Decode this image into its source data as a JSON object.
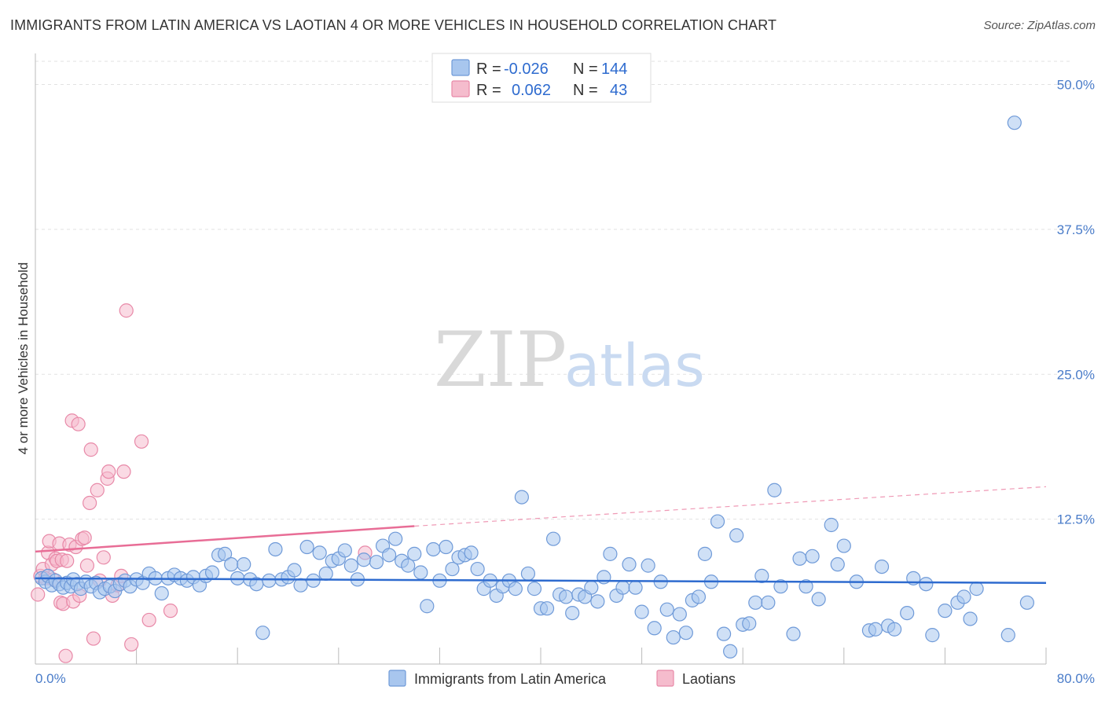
{
  "title": "IMMIGRANTS FROM LATIN AMERICA VS LAOTIAN 4 OR MORE VEHICLES IN HOUSEHOLD CORRELATION CHART",
  "source": "Source: ZipAtlas.com",
  "watermark": {
    "zip": "ZIP",
    "atlas": "atlas"
  },
  "colors": {
    "blue_fill": "#a8c6ee",
    "blue_stroke": "#6f9ad8",
    "blue_line": "#2e6bcf",
    "pink_fill": "#f5bccd",
    "pink_stroke": "#e889a8",
    "pink_line": "#e86d96",
    "tick_color": "#4a7cc9"
  },
  "legend": {
    "rows": [
      {
        "r_label": "R =",
        "r_value": "-0.026",
        "n_label": "N =",
        "n_value": "144"
      },
      {
        "r_label": "R =",
        "r_value": "0.062",
        "n_label": "N =",
        "n_value": "43"
      }
    ]
  },
  "bottom_legend": [
    "Immigrants from Latin America",
    "Laotians"
  ],
  "chart_data": {
    "type": "scatter",
    "title": "IMMIGRANTS FROM LATIN AMERICA VS LAOTIAN 4 OR MORE VEHICLES IN HOUSEHOLD CORRELATION CHART",
    "xlabel": "",
    "ylabel": "4 or more Vehicles in Household",
    "xlim": [
      0,
      80
    ],
    "ylim": [
      0,
      52
    ],
    "x_tick_labels": [
      "0.0%",
      "80.0%"
    ],
    "y_tick_labels": [
      "12.5%",
      "25.0%",
      "37.5%",
      "50.0%"
    ],
    "y_ticks": [
      12.5,
      25.0,
      37.5,
      50.0
    ],
    "grid": true,
    "legend_placement": "top-center",
    "series": [
      {
        "name": "Immigrants from Latin America",
        "r": -0.026,
        "n": 144,
        "trend": {
          "x0": 0,
          "y0": 7.4,
          "x1": 80,
          "y1": 7.0
        },
        "points": [
          [
            0.5,
            7.4
          ],
          [
            0.8,
            7.1
          ],
          [
            1.0,
            7.6
          ],
          [
            1.3,
            6.8
          ],
          [
            1.6,
            7.2
          ],
          [
            1.9,
            6.9
          ],
          [
            2.2,
            6.6
          ],
          [
            2.5,
            7.0
          ],
          [
            2.8,
            6.7
          ],
          [
            3.0,
            7.3
          ],
          [
            3.3,
            6.9
          ],
          [
            3.6,
            6.5
          ],
          [
            4.0,
            7.1
          ],
          [
            4.4,
            6.7
          ],
          [
            4.8,
            7.0
          ],
          [
            5.1,
            6.2
          ],
          [
            5.5,
            6.5
          ],
          [
            5.9,
            6.7
          ],
          [
            6.3,
            6.3
          ],
          [
            6.7,
            6.9
          ],
          [
            7.1,
            7.2
          ],
          [
            7.5,
            6.7
          ],
          [
            8.0,
            7.3
          ],
          [
            8.5,
            7.0
          ],
          [
            9.0,
            7.8
          ],
          [
            9.5,
            7.4
          ],
          [
            10.0,
            6.1
          ],
          [
            10.5,
            7.4
          ],
          [
            11.0,
            7.7
          ],
          [
            11.5,
            7.4
          ],
          [
            12.0,
            7.2
          ],
          [
            12.5,
            7.5
          ],
          [
            13.0,
            6.8
          ],
          [
            13.5,
            7.6
          ],
          [
            14.0,
            7.9
          ],
          [
            14.5,
            9.4
          ],
          [
            15.0,
            9.5
          ],
          [
            15.5,
            8.6
          ],
          [
            16.0,
            7.4
          ],
          [
            16.5,
            8.6
          ],
          [
            17.0,
            7.3
          ],
          [
            17.5,
            6.9
          ],
          [
            18.0,
            2.7
          ],
          [
            18.5,
            7.2
          ],
          [
            19.0,
            9.9
          ],
          [
            19.5,
            7.3
          ],
          [
            20.0,
            7.5
          ],
          [
            20.5,
            8.1
          ],
          [
            21.0,
            6.8
          ],
          [
            21.5,
            10.1
          ],
          [
            22.0,
            7.2
          ],
          [
            22.5,
            9.6
          ],
          [
            23.0,
            7.8
          ],
          [
            23.5,
            8.9
          ],
          [
            24.0,
            9.1
          ],
          [
            24.5,
            9.8
          ],
          [
            25.0,
            8.5
          ],
          [
            25.5,
            7.3
          ],
          [
            26.0,
            9.0
          ],
          [
            27.0,
            8.8
          ],
          [
            27.5,
            10.2
          ],
          [
            28.0,
            9.4
          ],
          [
            28.5,
            10.8
          ],
          [
            29.0,
            8.9
          ],
          [
            29.5,
            8.5
          ],
          [
            30.0,
            9.5
          ],
          [
            30.5,
            7.9
          ],
          [
            31.0,
            5.0
          ],
          [
            31.5,
            9.9
          ],
          [
            32.0,
            7.2
          ],
          [
            32.5,
            10.1
          ],
          [
            33.0,
            8.2
          ],
          [
            33.5,
            9.2
          ],
          [
            34.0,
            9.4
          ],
          [
            34.5,
            9.6
          ],
          [
            35.0,
            8.2
          ],
          [
            35.5,
            6.5
          ],
          [
            36.0,
            7.2
          ],
          [
            36.5,
            5.9
          ],
          [
            37.0,
            6.7
          ],
          [
            37.5,
            7.2
          ],
          [
            38.0,
            6.5
          ],
          [
            38.5,
            14.4
          ],
          [
            39.0,
            7.8
          ],
          [
            39.5,
            6.5
          ],
          [
            40.0,
            4.8
          ],
          [
            40.5,
            4.8
          ],
          [
            41.0,
            10.8
          ],
          [
            41.5,
            6.0
          ],
          [
            42.0,
            5.8
          ],
          [
            42.5,
            4.4
          ],
          [
            43.0,
            6.0
          ],
          [
            43.5,
            5.8
          ],
          [
            44.0,
            6.6
          ],
          [
            44.5,
            5.4
          ],
          [
            45.0,
            7.5
          ],
          [
            45.5,
            9.5
          ],
          [
            46.0,
            5.9
          ],
          [
            46.5,
            6.6
          ],
          [
            47.0,
            8.6
          ],
          [
            47.5,
            6.6
          ],
          [
            48.0,
            4.5
          ],
          [
            48.5,
            8.5
          ],
          [
            49.0,
            3.1
          ],
          [
            49.5,
            7.1
          ],
          [
            50.0,
            4.7
          ],
          [
            50.5,
            2.3
          ],
          [
            51.0,
            4.3
          ],
          [
            51.5,
            2.7
          ],
          [
            52.0,
            5.5
          ],
          [
            52.5,
            5.8
          ],
          [
            53.0,
            9.5
          ],
          [
            53.5,
            7.1
          ],
          [
            54.0,
            12.3
          ],
          [
            54.5,
            2.6
          ],
          [
            55.0,
            1.1
          ],
          [
            55.5,
            11.1
          ],
          [
            56.0,
            3.4
          ],
          [
            56.5,
            3.5
          ],
          [
            57.0,
            5.3
          ],
          [
            57.5,
            7.6
          ],
          [
            58.0,
            5.3
          ],
          [
            58.5,
            15.0
          ],
          [
            59.0,
            6.7
          ],
          [
            60.0,
            2.6
          ],
          [
            60.5,
            9.1
          ],
          [
            61.0,
            6.7
          ],
          [
            61.5,
            9.3
          ],
          [
            62.0,
            5.6
          ],
          [
            63.0,
            12.0
          ],
          [
            63.5,
            8.6
          ],
          [
            64.0,
            10.2
          ],
          [
            65.0,
            7.1
          ],
          [
            66.0,
            2.9
          ],
          [
            66.5,
            3.0
          ],
          [
            67.0,
            8.4
          ],
          [
            67.5,
            3.3
          ],
          [
            68.0,
            3.0
          ],
          [
            69.0,
            4.4
          ],
          [
            69.5,
            7.4
          ],
          [
            70.5,
            6.9
          ],
          [
            71.0,
            2.5
          ],
          [
            72.0,
            4.6
          ],
          [
            73.0,
            5.3
          ],
          [
            73.5,
            5.8
          ],
          [
            74.0,
            3.9
          ],
          [
            74.5,
            6.5
          ],
          [
            77.0,
            2.5
          ],
          [
            78.5,
            5.3
          ],
          [
            77.5,
            46.7
          ]
        ]
      },
      {
        "name": "Laotians",
        "r": 0.062,
        "n": 43,
        "trend": {
          "x0": 0,
          "y0": 9.7,
          "x1": 30,
          "y1": 11.9,
          "dash_to_x": 80,
          "dash_to_y": 15.3
        },
        "points": [
          [
            0.2,
            6.0
          ],
          [
            0.4,
            7.6
          ],
          [
            0.6,
            8.2
          ],
          [
            0.8,
            7.4
          ],
          [
            1.0,
            9.6
          ],
          [
            1.1,
            10.6
          ],
          [
            1.3,
            8.6
          ],
          [
            1.4,
            7.3
          ],
          [
            1.6,
            9.1
          ],
          [
            1.7,
            8.9
          ],
          [
            1.9,
            10.4
          ],
          [
            2.0,
            5.3
          ],
          [
            2.1,
            9.0
          ],
          [
            2.2,
            5.2
          ],
          [
            2.4,
            0.7
          ],
          [
            2.5,
            8.9
          ],
          [
            2.7,
            10.3
          ],
          [
            2.9,
            21.0
          ],
          [
            3.0,
            5.4
          ],
          [
            3.2,
            10.1
          ],
          [
            3.4,
            20.7
          ],
          [
            3.5,
            5.9
          ],
          [
            3.7,
            10.8
          ],
          [
            3.9,
            10.9
          ],
          [
            4.1,
            8.5
          ],
          [
            4.3,
            13.9
          ],
          [
            4.4,
            18.5
          ],
          [
            4.6,
            2.2
          ],
          [
            4.9,
            15.0
          ],
          [
            5.1,
            7.2
          ],
          [
            5.4,
            9.2
          ],
          [
            5.7,
            16.0
          ],
          [
            5.8,
            16.6
          ],
          [
            6.1,
            5.9
          ],
          [
            6.5,
            6.8
          ],
          [
            6.8,
            7.6
          ],
          [
            7.0,
            16.6
          ],
          [
            7.2,
            30.5
          ],
          [
            7.6,
            1.7
          ],
          [
            8.4,
            19.2
          ],
          [
            9.0,
            3.8
          ],
          [
            10.7,
            4.6
          ],
          [
            26.1,
            9.6
          ]
        ]
      }
    ]
  }
}
